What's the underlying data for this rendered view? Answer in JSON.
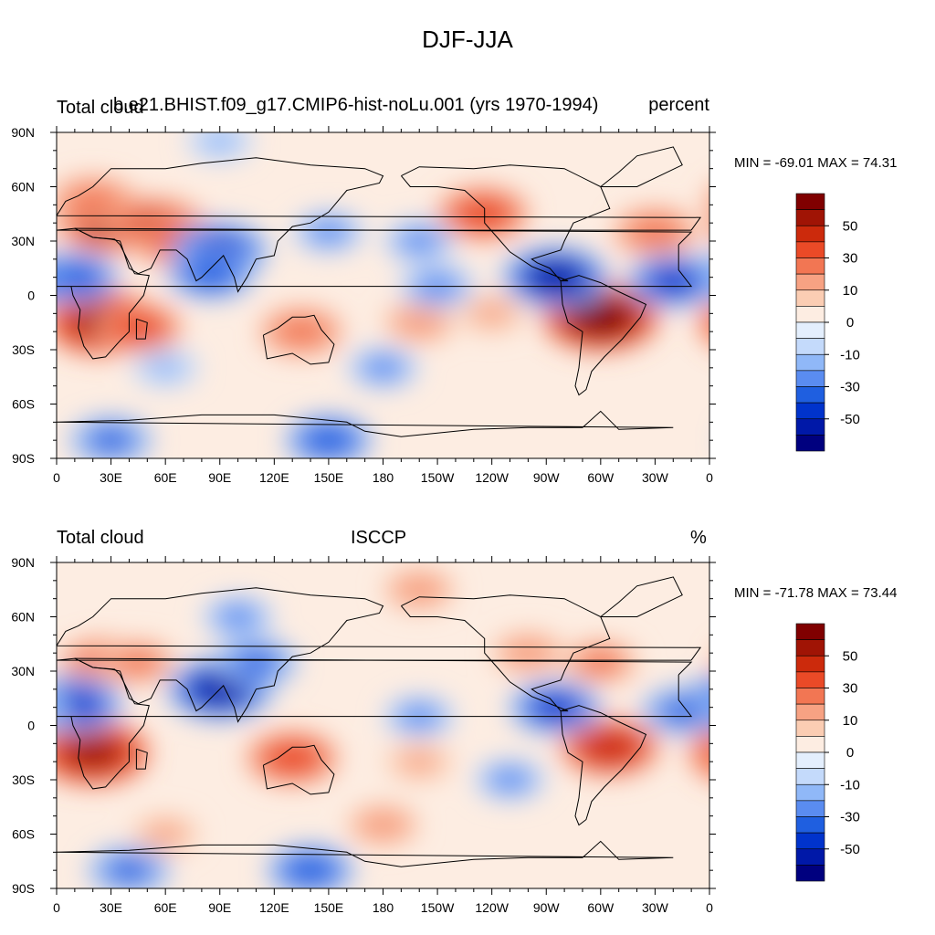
{
  "figure_title": "DJF-JJA",
  "chart_data": [
    {
      "type": "heatmap",
      "panel": "model",
      "left_title": "Total cloud",
      "center_title": "b.e21.BHIST.f09_g17.CMIP6-hist-noLu.001 (yrs 1970-1994)",
      "right_title": "percent",
      "min_max_label": "MIN = -69.01 MAX =  74.31",
      "min": -69.01,
      "max": 74.31,
      "x_range": [
        0,
        360
      ],
      "y_range": [
        -90,
        90
      ],
      "x_ticks": [
        "0",
        "30E",
        "60E",
        "90E",
        "120E",
        "150E",
        "180",
        "150W",
        "120W",
        "90W",
        "60W",
        "30W",
        "0"
      ],
      "y_ticks": [
        "90N",
        "60N",
        "30N",
        "0",
        "30S",
        "60S",
        "90S"
      ],
      "colorbar_labels": [
        "50",
        "30",
        "10",
        "0",
        "-10",
        "-30",
        "-50"
      ],
      "blobs": [
        {
          "lon": 30,
          "lat": 40,
          "value": 55
        },
        {
          "lon": 55,
          "lat": 38,
          "value": 45
        },
        {
          "lon": 70,
          "lat": 30,
          "value": 40
        },
        {
          "lon": 20,
          "lat": 52,
          "value": 30
        },
        {
          "lon": 25,
          "lat": -15,
          "value": 60
        },
        {
          "lon": 45,
          "lat": -18,
          "value": 35
        },
        {
          "lon": 300,
          "lat": -12,
          "value": 65
        },
        {
          "lon": 235,
          "lat": 45,
          "value": 40
        },
        {
          "lon": 330,
          "lat": 35,
          "value": 30
        },
        {
          "lon": 135,
          "lat": -20,
          "value": 30
        },
        {
          "lon": 200,
          "lat": -15,
          "value": 20
        },
        {
          "lon": 240,
          "lat": -10,
          "value": 15
        },
        {
          "lon": 90,
          "lat": 25,
          "value": -45
        },
        {
          "lon": 85,
          "lat": 12,
          "value": -35
        },
        {
          "lon": 10,
          "lat": 10,
          "value": -35
        },
        {
          "lon": 275,
          "lat": 10,
          "value": -55
        },
        {
          "lon": 340,
          "lat": 8,
          "value": -40
        },
        {
          "lon": 210,
          "lat": 5,
          "value": -25
        },
        {
          "lon": 150,
          "lat": 35,
          "value": -20
        },
        {
          "lon": 200,
          "lat": 30,
          "value": -20
        },
        {
          "lon": 180,
          "lat": -40,
          "value": -20
        },
        {
          "lon": 60,
          "lat": -40,
          "value": -15
        },
        {
          "lon": 150,
          "lat": -80,
          "value": -35
        },
        {
          "lon": 30,
          "lat": -80,
          "value": -30
        },
        {
          "lon": 90,
          "lat": 85,
          "value": -15
        }
      ]
    },
    {
      "type": "heatmap",
      "panel": "observations",
      "left_title": "Total cloud",
      "center_title": "ISCCP",
      "right_title": "%",
      "min_max_label": "MIN = -71.78 MAX =  73.44",
      "min": -71.78,
      "max": 73.44,
      "x_range": [
        0,
        360
      ],
      "y_range": [
        -90,
        90
      ],
      "x_ticks": [
        "0",
        "30E",
        "60E",
        "90E",
        "120E",
        "150E",
        "180",
        "150W",
        "120W",
        "90W",
        "60W",
        "30W",
        "0"
      ],
      "y_ticks": [
        "90N",
        "60N",
        "30N",
        "0",
        "30S",
        "60S",
        "90S"
      ],
      "colorbar_labels": [
        "50",
        "30",
        "10",
        "0",
        "-10",
        "-30",
        "-50"
      ],
      "blobs": [
        {
          "lon": 20,
          "lat": -15,
          "value": 60
        },
        {
          "lon": 305,
          "lat": -12,
          "value": 50
        },
        {
          "lon": 130,
          "lat": -18,
          "value": 40
        },
        {
          "lon": 25,
          "lat": 35,
          "value": 30
        },
        {
          "lon": 45,
          "lat": 35,
          "value": 25
        },
        {
          "lon": 300,
          "lat": 35,
          "value": 25
        },
        {
          "lon": 260,
          "lat": 40,
          "value": 20
        },
        {
          "lon": 200,
          "lat": 75,
          "value": 20
        },
        {
          "lon": 200,
          "lat": -20,
          "value": 15
        },
        {
          "lon": 180,
          "lat": -55,
          "value": 20
        },
        {
          "lon": 60,
          "lat": -60,
          "value": 15
        },
        {
          "lon": 90,
          "lat": 20,
          "value": -55
        },
        {
          "lon": 110,
          "lat": 35,
          "value": -30
        },
        {
          "lon": 10,
          "lat": 12,
          "value": -45
        },
        {
          "lon": 275,
          "lat": 10,
          "value": -40
        },
        {
          "lon": 345,
          "lat": 8,
          "value": -30
        },
        {
          "lon": 200,
          "lat": 5,
          "value": -20
        },
        {
          "lon": 100,
          "lat": 60,
          "value": -20
        },
        {
          "lon": 140,
          "lat": -80,
          "value": -35
        },
        {
          "lon": 40,
          "lat": -80,
          "value": -30
        },
        {
          "lon": 250,
          "lat": -30,
          "value": -20
        }
      ]
    }
  ],
  "colors": {
    "palette": [
      "#00007F",
      "#0018A8",
      "#0033CC",
      "#1F5FE0",
      "#5A8CF0",
      "#90B8F8",
      "#C4DAFB",
      "#E4EFFD",
      "#FDEDE2",
      "#FBCDB3",
      "#F7A283",
      "#F27653",
      "#EA4A27",
      "#CC2A0C",
      "#A01405",
      "#800000"
    ]
  }
}
